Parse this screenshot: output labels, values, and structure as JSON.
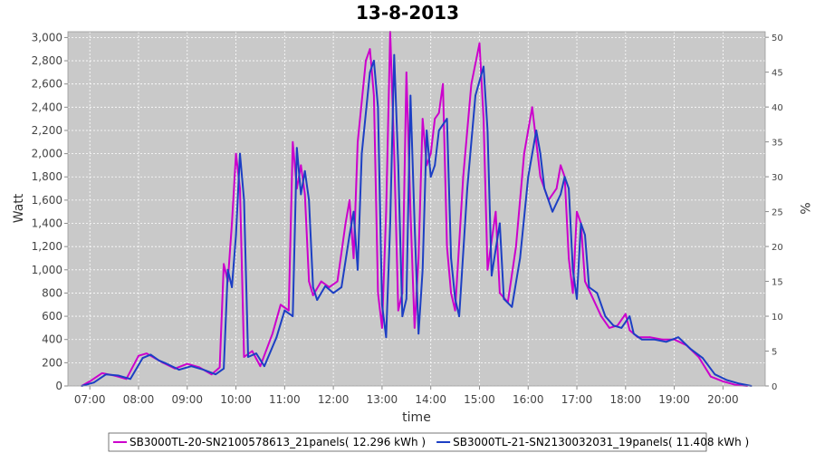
{
  "chart_data": {
    "type": "line",
    "title": "13-8-2013",
    "xlabel": "time",
    "ylabel": "Watt",
    "y2label": "%",
    "x_ticks": [
      "07:00",
      "08:00",
      "09:00",
      "10:00",
      "11:00",
      "12:00",
      "13:00",
      "14:00",
      "15:00",
      "16:00",
      "17:00",
      "18:00",
      "19:00",
      "20:00"
    ],
    "x_range": [
      "06:33",
      "20:52"
    ],
    "ylim": [
      0,
      3050
    ],
    "y_ticks": [
      "0",
      "200",
      "400",
      "600",
      "800",
      "1,000",
      "1,200",
      "1,400",
      "1,600",
      "1,800",
      "2,000",
      "2,200",
      "2,400",
      "2,600",
      "2,800",
      "3,000"
    ],
    "y2lim": [
      0,
      50.8
    ],
    "y2_ticks": [
      "0",
      "5",
      "10",
      "15",
      "20",
      "25",
      "30",
      "35",
      "40",
      "45",
      "50"
    ],
    "grid": true,
    "legend_position": "bottom",
    "series": [
      {
        "name": "SB3000TL-20-SN2100578613_21panels( 12.296 kWh )",
        "color": "#cc00cc",
        "points": [
          [
            "06:50",
            0
          ],
          [
            "07:00",
            40
          ],
          [
            "07:15",
            110
          ],
          [
            "07:30",
            90
          ],
          [
            "07:45",
            60
          ],
          [
            "08:00",
            260
          ],
          [
            "08:10",
            280
          ],
          [
            "08:20",
            240
          ],
          [
            "08:30",
            200
          ],
          [
            "08:45",
            150
          ],
          [
            "09:00",
            190
          ],
          [
            "09:15",
            160
          ],
          [
            "09:30",
            100
          ],
          [
            "09:40",
            160
          ],
          [
            "09:45",
            1050
          ],
          [
            "09:50",
            900
          ],
          [
            "09:55",
            1400
          ],
          [
            "10:00",
            2000
          ],
          [
            "10:05",
            1700
          ],
          [
            "10:10",
            250
          ],
          [
            "10:20",
            300
          ],
          [
            "10:30",
            170
          ],
          [
            "10:45",
            450
          ],
          [
            "10:55",
            700
          ],
          [
            "11:05",
            650
          ],
          [
            "11:10",
            2100
          ],
          [
            "11:15",
            1700
          ],
          [
            "11:20",
            1900
          ],
          [
            "11:25",
            1650
          ],
          [
            "11:30",
            900
          ],
          [
            "11:35",
            780
          ],
          [
            "11:45",
            900
          ],
          [
            "11:55",
            850
          ],
          [
            "12:05",
            900
          ],
          [
            "12:15",
            1400
          ],
          [
            "12:20",
            1600
          ],
          [
            "12:25",
            1100
          ],
          [
            "12:30",
            2100
          ],
          [
            "12:40",
            2800
          ],
          [
            "12:45",
            2900
          ],
          [
            "12:50",
            2500
          ],
          [
            "12:55",
            800
          ],
          [
            "13:00",
            500
          ],
          [
            "13:05",
            1500
          ],
          [
            "13:10",
            3050
          ],
          [
            "13:15",
            2000
          ],
          [
            "13:20",
            650
          ],
          [
            "13:25",
            800
          ],
          [
            "13:30",
            2700
          ],
          [
            "13:35",
            1500
          ],
          [
            "13:40",
            500
          ],
          [
            "13:45",
            1100
          ],
          [
            "13:50",
            2300
          ],
          [
            "13:55",
            1900
          ],
          [
            "14:00",
            2000
          ],
          [
            "14:05",
            2300
          ],
          [
            "14:10",
            2350
          ],
          [
            "14:15",
            2600
          ],
          [
            "14:20",
            1200
          ],
          [
            "14:25",
            800
          ],
          [
            "14:30",
            650
          ],
          [
            "14:40",
            1800
          ],
          [
            "14:50",
            2600
          ],
          [
            "15:00",
            2950
          ],
          [
            "15:05",
            2300
          ],
          [
            "15:10",
            1000
          ],
          [
            "15:20",
            1500
          ],
          [
            "15:25",
            800
          ],
          [
            "15:35",
            720
          ],
          [
            "15:45",
            1200
          ],
          [
            "15:55",
            2000
          ],
          [
            "16:05",
            2400
          ],
          [
            "16:10",
            2100
          ],
          [
            "16:15",
            1800
          ],
          [
            "16:25",
            1600
          ],
          [
            "16:35",
            1700
          ],
          [
            "16:40",
            1900
          ],
          [
            "16:45",
            1800
          ],
          [
            "16:50",
            1100
          ],
          [
            "16:55",
            800
          ],
          [
            "17:00",
            1500
          ],
          [
            "17:05",
            1400
          ],
          [
            "17:10",
            900
          ],
          [
            "17:20",
            750
          ],
          [
            "17:30",
            600
          ],
          [
            "17:40",
            500
          ],
          [
            "17:50",
            520
          ],
          [
            "18:00",
            620
          ],
          [
            "18:05",
            480
          ],
          [
            "18:15",
            420
          ],
          [
            "18:30",
            420
          ],
          [
            "18:45",
            400
          ],
          [
            "19:00",
            400
          ],
          [
            "19:15",
            350
          ],
          [
            "19:30",
            250
          ],
          [
            "19:45",
            80
          ],
          [
            "20:00",
            40
          ],
          [
            "20:15",
            10
          ],
          [
            "20:30",
            0
          ]
        ]
      },
      {
        "name": "SB3000TL-21-SN2130032031_19panels( 11.408 kWh )",
        "color": "#1c3fc4",
        "points": [
          [
            "06:50",
            0
          ],
          [
            "07:05",
            30
          ],
          [
            "07:20",
            100
          ],
          [
            "07:35",
            90
          ],
          [
            "07:50",
            60
          ],
          [
            "08:05",
            240
          ],
          [
            "08:15",
            270
          ],
          [
            "08:25",
            220
          ],
          [
            "08:35",
            190
          ],
          [
            "08:50",
            140
          ],
          [
            "09:05",
            170
          ],
          [
            "09:20",
            140
          ],
          [
            "09:35",
            100
          ],
          [
            "09:45",
            150
          ],
          [
            "09:50",
            1000
          ],
          [
            "09:55",
            850
          ],
          [
            "10:00",
            1300
          ],
          [
            "10:05",
            2000
          ],
          [
            "10:10",
            1600
          ],
          [
            "10:15",
            250
          ],
          [
            "10:25",
            280
          ],
          [
            "10:35",
            170
          ],
          [
            "10:50",
            420
          ],
          [
            "11:00",
            650
          ],
          [
            "11:10",
            600
          ],
          [
            "11:15",
            2050
          ],
          [
            "11:20",
            1650
          ],
          [
            "11:25",
            1850
          ],
          [
            "11:30",
            1600
          ],
          [
            "11:35",
            850
          ],
          [
            "11:40",
            740
          ],
          [
            "11:50",
            860
          ],
          [
            "12:00",
            800
          ],
          [
            "12:10",
            850
          ],
          [
            "12:20",
            1300
          ],
          [
            "12:25",
            1500
          ],
          [
            "12:30",
            1000
          ],
          [
            "12:35",
            2000
          ],
          [
            "12:45",
            2700
          ],
          [
            "12:50",
            2800
          ],
          [
            "12:55",
            2400
          ],
          [
            "13:00",
            700
          ],
          [
            "13:05",
            420
          ],
          [
            "13:10",
            1400
          ],
          [
            "13:15",
            2850
          ],
          [
            "13:20",
            1900
          ],
          [
            "13:25",
            600
          ],
          [
            "13:30",
            750
          ],
          [
            "13:35",
            2500
          ],
          [
            "13:40",
            1400
          ],
          [
            "13:45",
            450
          ],
          [
            "13:50",
            1000
          ],
          [
            "13:55",
            2200
          ],
          [
            "14:00",
            1800
          ],
          [
            "14:05",
            1900
          ],
          [
            "14:10",
            2200
          ],
          [
            "14:15",
            2250
          ],
          [
            "14:20",
            2300
          ],
          [
            "14:25",
            1100
          ],
          [
            "14:30",
            750
          ],
          [
            "14:35",
            600
          ],
          [
            "14:45",
            1700
          ],
          [
            "14:55",
            2500
          ],
          [
            "15:05",
            2750
          ],
          [
            "15:10",
            2200
          ],
          [
            "15:15",
            950
          ],
          [
            "15:25",
            1400
          ],
          [
            "15:30",
            750
          ],
          [
            "15:40",
            680
          ],
          [
            "15:50",
            1100
          ],
          [
            "16:00",
            1800
          ],
          [
            "16:10",
            2200
          ],
          [
            "16:15",
            2000
          ],
          [
            "16:20",
            1700
          ],
          [
            "16:30",
            1500
          ],
          [
            "16:40",
            1650
          ],
          [
            "16:45",
            1800
          ],
          [
            "16:50",
            1700
          ],
          [
            "16:55",
            1000
          ],
          [
            "17:00",
            750
          ],
          [
            "17:05",
            1400
          ],
          [
            "17:10",
            1300
          ],
          [
            "17:15",
            850
          ],
          [
            "17:25",
            800
          ],
          [
            "17:35",
            600
          ],
          [
            "17:45",
            520
          ],
          [
            "17:55",
            500
          ],
          [
            "18:05",
            600
          ],
          [
            "18:10",
            450
          ],
          [
            "18:20",
            400
          ],
          [
            "18:35",
            400
          ],
          [
            "18:50",
            380
          ],
          [
            "19:05",
            420
          ],
          [
            "19:20",
            320
          ],
          [
            "19:35",
            240
          ],
          [
            "19:50",
            100
          ],
          [
            "20:05",
            50
          ],
          [
            "20:20",
            20
          ],
          [
            "20:35",
            0
          ]
        ]
      }
    ]
  }
}
